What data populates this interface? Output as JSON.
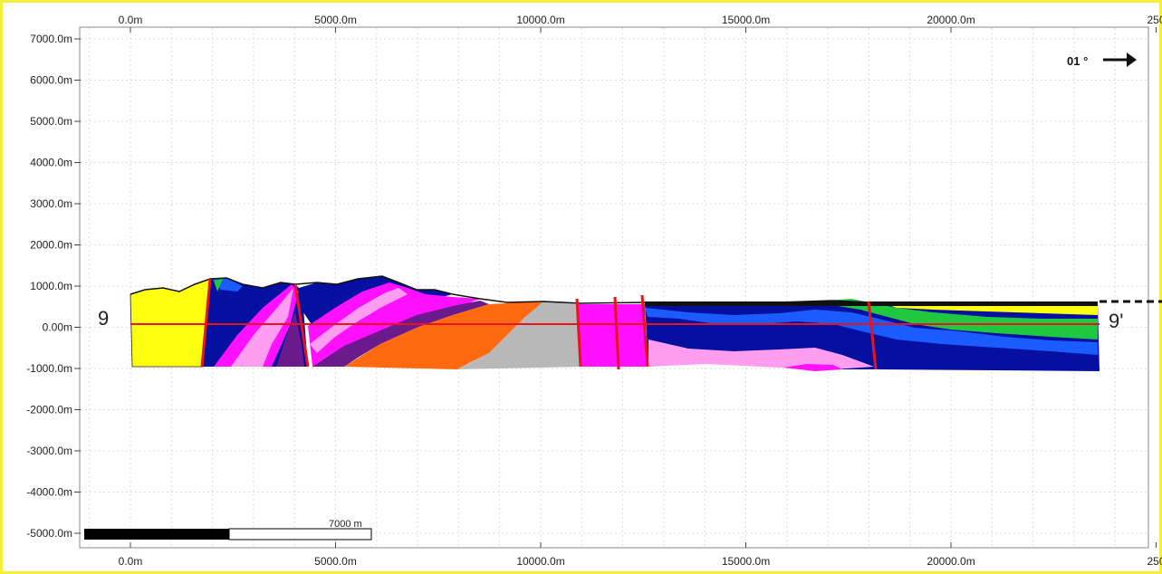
{
  "section": {
    "start_label": "9",
    "end_label": "9'",
    "azimuth_label": "01 °",
    "scale_label": "7000 m"
  },
  "axes": {
    "x_ticks_top": [
      "0.0m",
      "5000.0m",
      "10000.0m",
      "15000.0m",
      "20000.0m",
      "250"
    ],
    "x_ticks_bottom": [
      "0.0m",
      "5000.0m",
      "10000.0m",
      "15000.0m",
      "20000.0m",
      "250"
    ],
    "y_ticks": [
      "7000.0m",
      "6000.0m",
      "5000.0m",
      "4000.0m",
      "3000.0m",
      "2000.0m",
      "1000.0m",
      "0.00m",
      "-1000.0m",
      "-2000.0m",
      "-3000.0m",
      "-4000.0m",
      "-5000.0m"
    ]
  },
  "colors": {
    "border": "#f5ee3a",
    "fault": "#e8131b",
    "yellow_unit": "#ffff10",
    "navy_unit": "#050fa0",
    "blue_unit": "#1a5cff",
    "magenta_unit": "#ff10ff",
    "pink_unit": "#ff9ef0",
    "purple_unit": "#6a1a8a",
    "orange_unit": "#ff6a10",
    "grey_unit": "#b8b8b8",
    "green_unit": "#20c840"
  }
}
